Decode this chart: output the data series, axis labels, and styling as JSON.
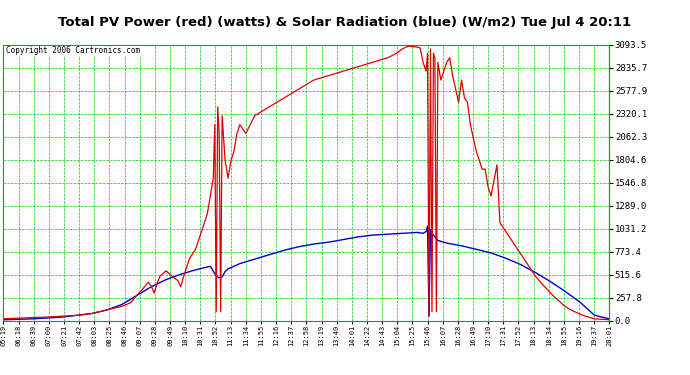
{
  "title": "Total PV Power (red) (watts) & Solar Radiation (blue) (W/m2) Tue Jul 4 20:11",
  "copyright": "Copyright 2006 Cartronics.com",
  "ylabel_right_ticks": [
    0.0,
    257.8,
    515.6,
    773.4,
    1031.2,
    1289.0,
    1546.8,
    1804.6,
    2062.3,
    2320.1,
    2577.9,
    2835.7,
    3093.5
  ],
  "x_labels": [
    "05:19",
    "06:18",
    "06:39",
    "07:00",
    "07:21",
    "07:42",
    "08:03",
    "08:25",
    "08:46",
    "09:07",
    "09:28",
    "09:49",
    "10:10",
    "10:31",
    "10:52",
    "11:13",
    "11:34",
    "11:55",
    "12:16",
    "12:37",
    "12:58",
    "13:19",
    "13:40",
    "14:01",
    "14:22",
    "14:43",
    "15:04",
    "15:25",
    "15:46",
    "16:07",
    "16:28",
    "16:49",
    "17:10",
    "17:31",
    "17:52",
    "18:13",
    "18:34",
    "18:55",
    "19:16",
    "19:37",
    "20:01"
  ],
  "plot_bg_color": "#ffffff",
  "fig_bg_color": "#ffffff",
  "grid_color": "#00cc00",
  "ymax": 3093.5,
  "ymin": 0.0,
  "red_line_color": "#dd0000",
  "blue_line_color": "#0000cc",
  "red_data": [
    [
      0,
      20
    ],
    [
      0.3,
      25
    ],
    [
      0.7,
      30
    ],
    [
      1.0,
      35
    ],
    [
      1.5,
      40
    ],
    [
      2.0,
      50
    ],
    [
      2.5,
      60
    ],
    [
      3.0,
      80
    ],
    [
      3.5,
      120
    ],
    [
      4.0,
      160
    ],
    [
      4.3,
      200
    ],
    [
      4.5,
      280
    ],
    [
      4.7,
      350
    ],
    [
      4.9,
      430
    ],
    [
      5.0,
      390
    ],
    [
      5.1,
      310
    ],
    [
      5.2,
      420
    ],
    [
      5.3,
      500
    ],
    [
      5.5,
      560
    ],
    [
      5.7,
      500
    ],
    [
      5.9,
      450
    ],
    [
      6.0,
      380
    ],
    [
      6.1,
      500
    ],
    [
      6.2,
      600
    ],
    [
      6.3,
      700
    ],
    [
      6.5,
      800
    ],
    [
      6.7,
      1000
    ],
    [
      6.9,
      1200
    ],
    [
      7.0,
      1400
    ],
    [
      7.1,
      1600
    ],
    [
      7.15,
      2200
    ],
    [
      7.2,
      100
    ],
    [
      7.25,
      2400
    ],
    [
      7.3,
      2100
    ],
    [
      7.35,
      100
    ],
    [
      7.4,
      2300
    ],
    [
      7.5,
      1800
    ],
    [
      7.6,
      1600
    ],
    [
      7.7,
      1800
    ],
    [
      7.8,
      1900
    ],
    [
      7.9,
      2100
    ],
    [
      8.0,
      2200
    ],
    [
      8.2,
      2100
    ],
    [
      8.5,
      2300
    ],
    [
      9.0,
      2400
    ],
    [
      9.5,
      2500
    ],
    [
      10.0,
      2600
    ],
    [
      10.5,
      2700
    ],
    [
      11.0,
      2750
    ],
    [
      11.5,
      2800
    ],
    [
      12.0,
      2850
    ],
    [
      12.5,
      2900
    ],
    [
      13.0,
      2950
    ],
    [
      13.3,
      3000
    ],
    [
      13.5,
      3050
    ],
    [
      13.7,
      3080
    ],
    [
      14.0,
      3070
    ],
    [
      14.1,
      3060
    ],
    [
      14.2,
      2900
    ],
    [
      14.3,
      2800
    ],
    [
      14.35,
      3000
    ],
    [
      14.4,
      50
    ],
    [
      14.45,
      3050
    ],
    [
      14.5,
      100
    ],
    [
      14.55,
      3000
    ],
    [
      14.6,
      2950
    ],
    [
      14.65,
      100
    ],
    [
      14.7,
      2900
    ],
    [
      14.75,
      2800
    ],
    [
      14.8,
      2700
    ],
    [
      15.0,
      2900
    ],
    [
      15.1,
      2950
    ],
    [
      15.15,
      2850
    ],
    [
      15.2,
      2750
    ],
    [
      15.3,
      2600
    ],
    [
      15.4,
      2450
    ],
    [
      15.5,
      2700
    ],
    [
      15.6,
      2500
    ],
    [
      15.7,
      2450
    ],
    [
      15.8,
      2200
    ],
    [
      16.0,
      1900
    ],
    [
      16.2,
      1700
    ],
    [
      16.3,
      1700
    ],
    [
      16.4,
      1500
    ],
    [
      16.5,
      1400
    ],
    [
      16.7,
      1750
    ],
    [
      16.8,
      1100
    ],
    [
      17.0,
      1000
    ],
    [
      17.2,
      900
    ],
    [
      17.4,
      800
    ],
    [
      17.6,
      700
    ],
    [
      17.8,
      600
    ],
    [
      18.0,
      500
    ],
    [
      18.2,
      420
    ],
    [
      18.4,
      350
    ],
    [
      18.6,
      280
    ],
    [
      18.8,
      220
    ],
    [
      19.0,
      160
    ],
    [
      19.2,
      120
    ],
    [
      19.4,
      90
    ],
    [
      19.6,
      60
    ],
    [
      19.8,
      40
    ],
    [
      20.0,
      20
    ],
    [
      20.5,
      10
    ]
  ],
  "blue_data": [
    [
      0,
      10
    ],
    [
      0.5,
      15
    ],
    [
      1.0,
      20
    ],
    [
      1.5,
      30
    ],
    [
      2.0,
      40
    ],
    [
      2.5,
      60
    ],
    [
      3.0,
      80
    ],
    [
      3.5,
      120
    ],
    [
      4.0,
      180
    ],
    [
      4.5,
      280
    ],
    [
      5.0,
      380
    ],
    [
      5.5,
      460
    ],
    [
      6.0,
      520
    ],
    [
      6.5,
      570
    ],
    [
      7.0,
      610
    ],
    [
      7.2,
      500
    ],
    [
      7.3,
      480
    ],
    [
      7.4,
      490
    ],
    [
      7.5,
      550
    ],
    [
      7.6,
      580
    ],
    [
      8.0,
      640
    ],
    [
      8.5,
      690
    ],
    [
      9.0,
      740
    ],
    [
      9.5,
      790
    ],
    [
      10.0,
      830
    ],
    [
      10.5,
      860
    ],
    [
      11.0,
      880
    ],
    [
      11.5,
      910
    ],
    [
      12.0,
      940
    ],
    [
      12.5,
      960
    ],
    [
      13.0,
      970
    ],
    [
      13.5,
      980
    ],
    [
      13.8,
      985
    ],
    [
      14.0,
      990
    ],
    [
      14.2,
      980
    ],
    [
      14.3,
      1000
    ],
    [
      14.35,
      1060
    ],
    [
      14.4,
      50
    ],
    [
      14.45,
      1020
    ],
    [
      14.5,
      980
    ],
    [
      14.6,
      940
    ],
    [
      14.7,
      900
    ],
    [
      15.0,
      870
    ],
    [
      15.5,
      840
    ],
    [
      16.0,
      800
    ],
    [
      16.5,
      760
    ],
    [
      17.0,
      700
    ],
    [
      17.5,
      630
    ],
    [
      18.0,
      540
    ],
    [
      18.5,
      440
    ],
    [
      19.0,
      330
    ],
    [
      19.5,
      210
    ],
    [
      19.8,
      120
    ],
    [
      20.0,
      60
    ],
    [
      20.5,
      20
    ]
  ]
}
